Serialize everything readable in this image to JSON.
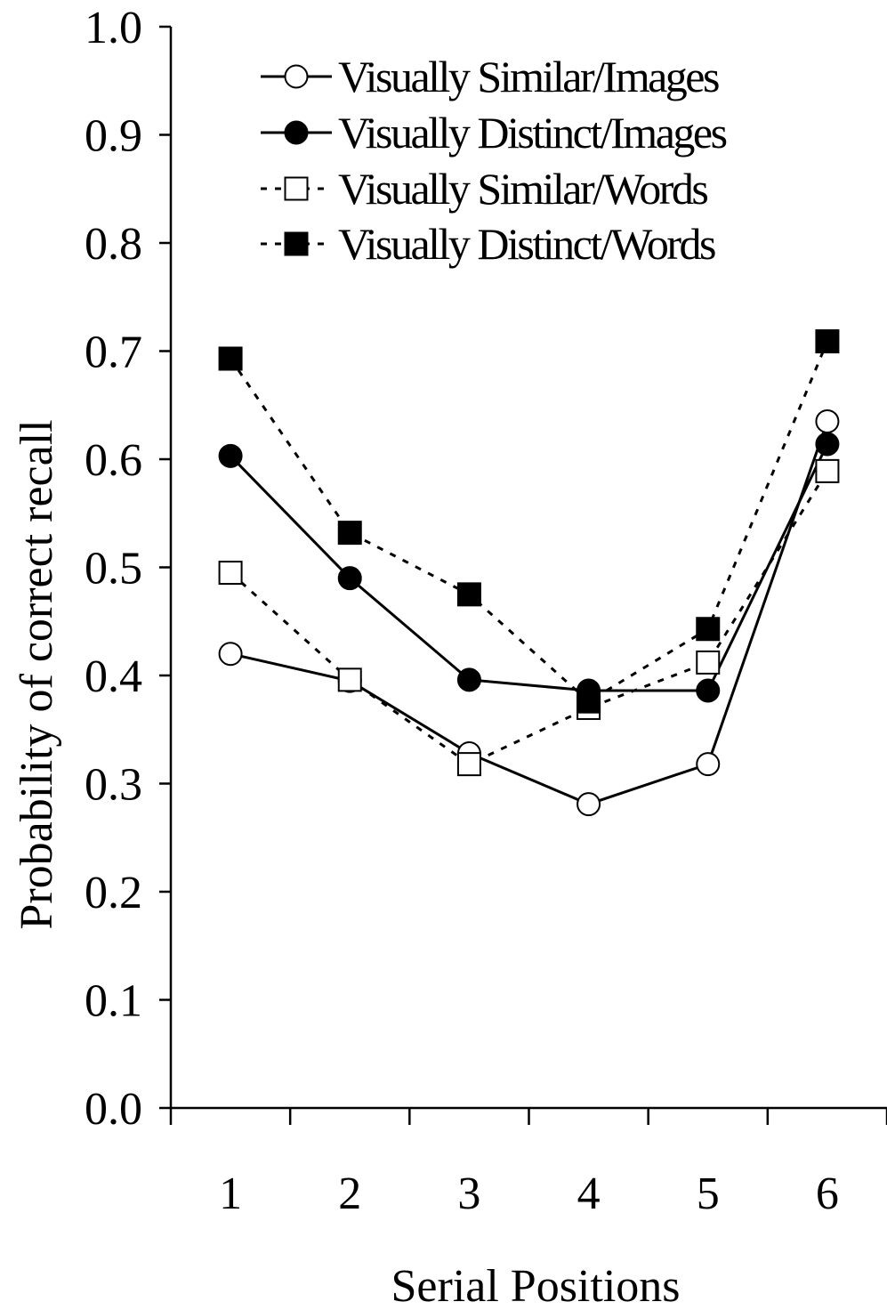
{
  "chart_data": {
    "type": "line",
    "title": "",
    "xlabel": "Serial Positions",
    "ylabel": "Probability of correct recall",
    "categories": [
      "1",
      "2",
      "3",
      "4",
      "5",
      "6"
    ],
    "ylim": [
      0,
      1
    ],
    "yticks": [
      "0.0",
      "0.1",
      "0.2",
      "0.3",
      "0.4",
      "0.5",
      "0.6",
      "0.7",
      "0.8",
      "0.9",
      "1.0"
    ],
    "grid": false,
    "legend_position": "top",
    "series": [
      {
        "name": "Visually Similar/Images",
        "marker": "circle",
        "fill": "open",
        "line": "solid",
        "values": [
          0.42,
          0.395,
          0.328,
          0.281,
          0.318,
          0.635
        ]
      },
      {
        "name": "Visually Distinct/Images",
        "marker": "circle",
        "fill": "filled",
        "line": "solid",
        "values": [
          0.603,
          0.49,
          0.396,
          0.386,
          0.386,
          0.614
        ]
      },
      {
        "name": "Visually Similar/Words",
        "marker": "square",
        "fill": "open",
        "line": "dotted",
        "values": [
          0.495,
          0.396,
          0.318,
          0.37,
          0.412,
          0.589
        ]
      },
      {
        "name": "Visually Distinct/Words",
        "marker": "square",
        "fill": "filled",
        "line": "dotted",
        "values": [
          0.693,
          0.532,
          0.475,
          0.376,
          0.443,
          0.709
        ]
      }
    ]
  }
}
